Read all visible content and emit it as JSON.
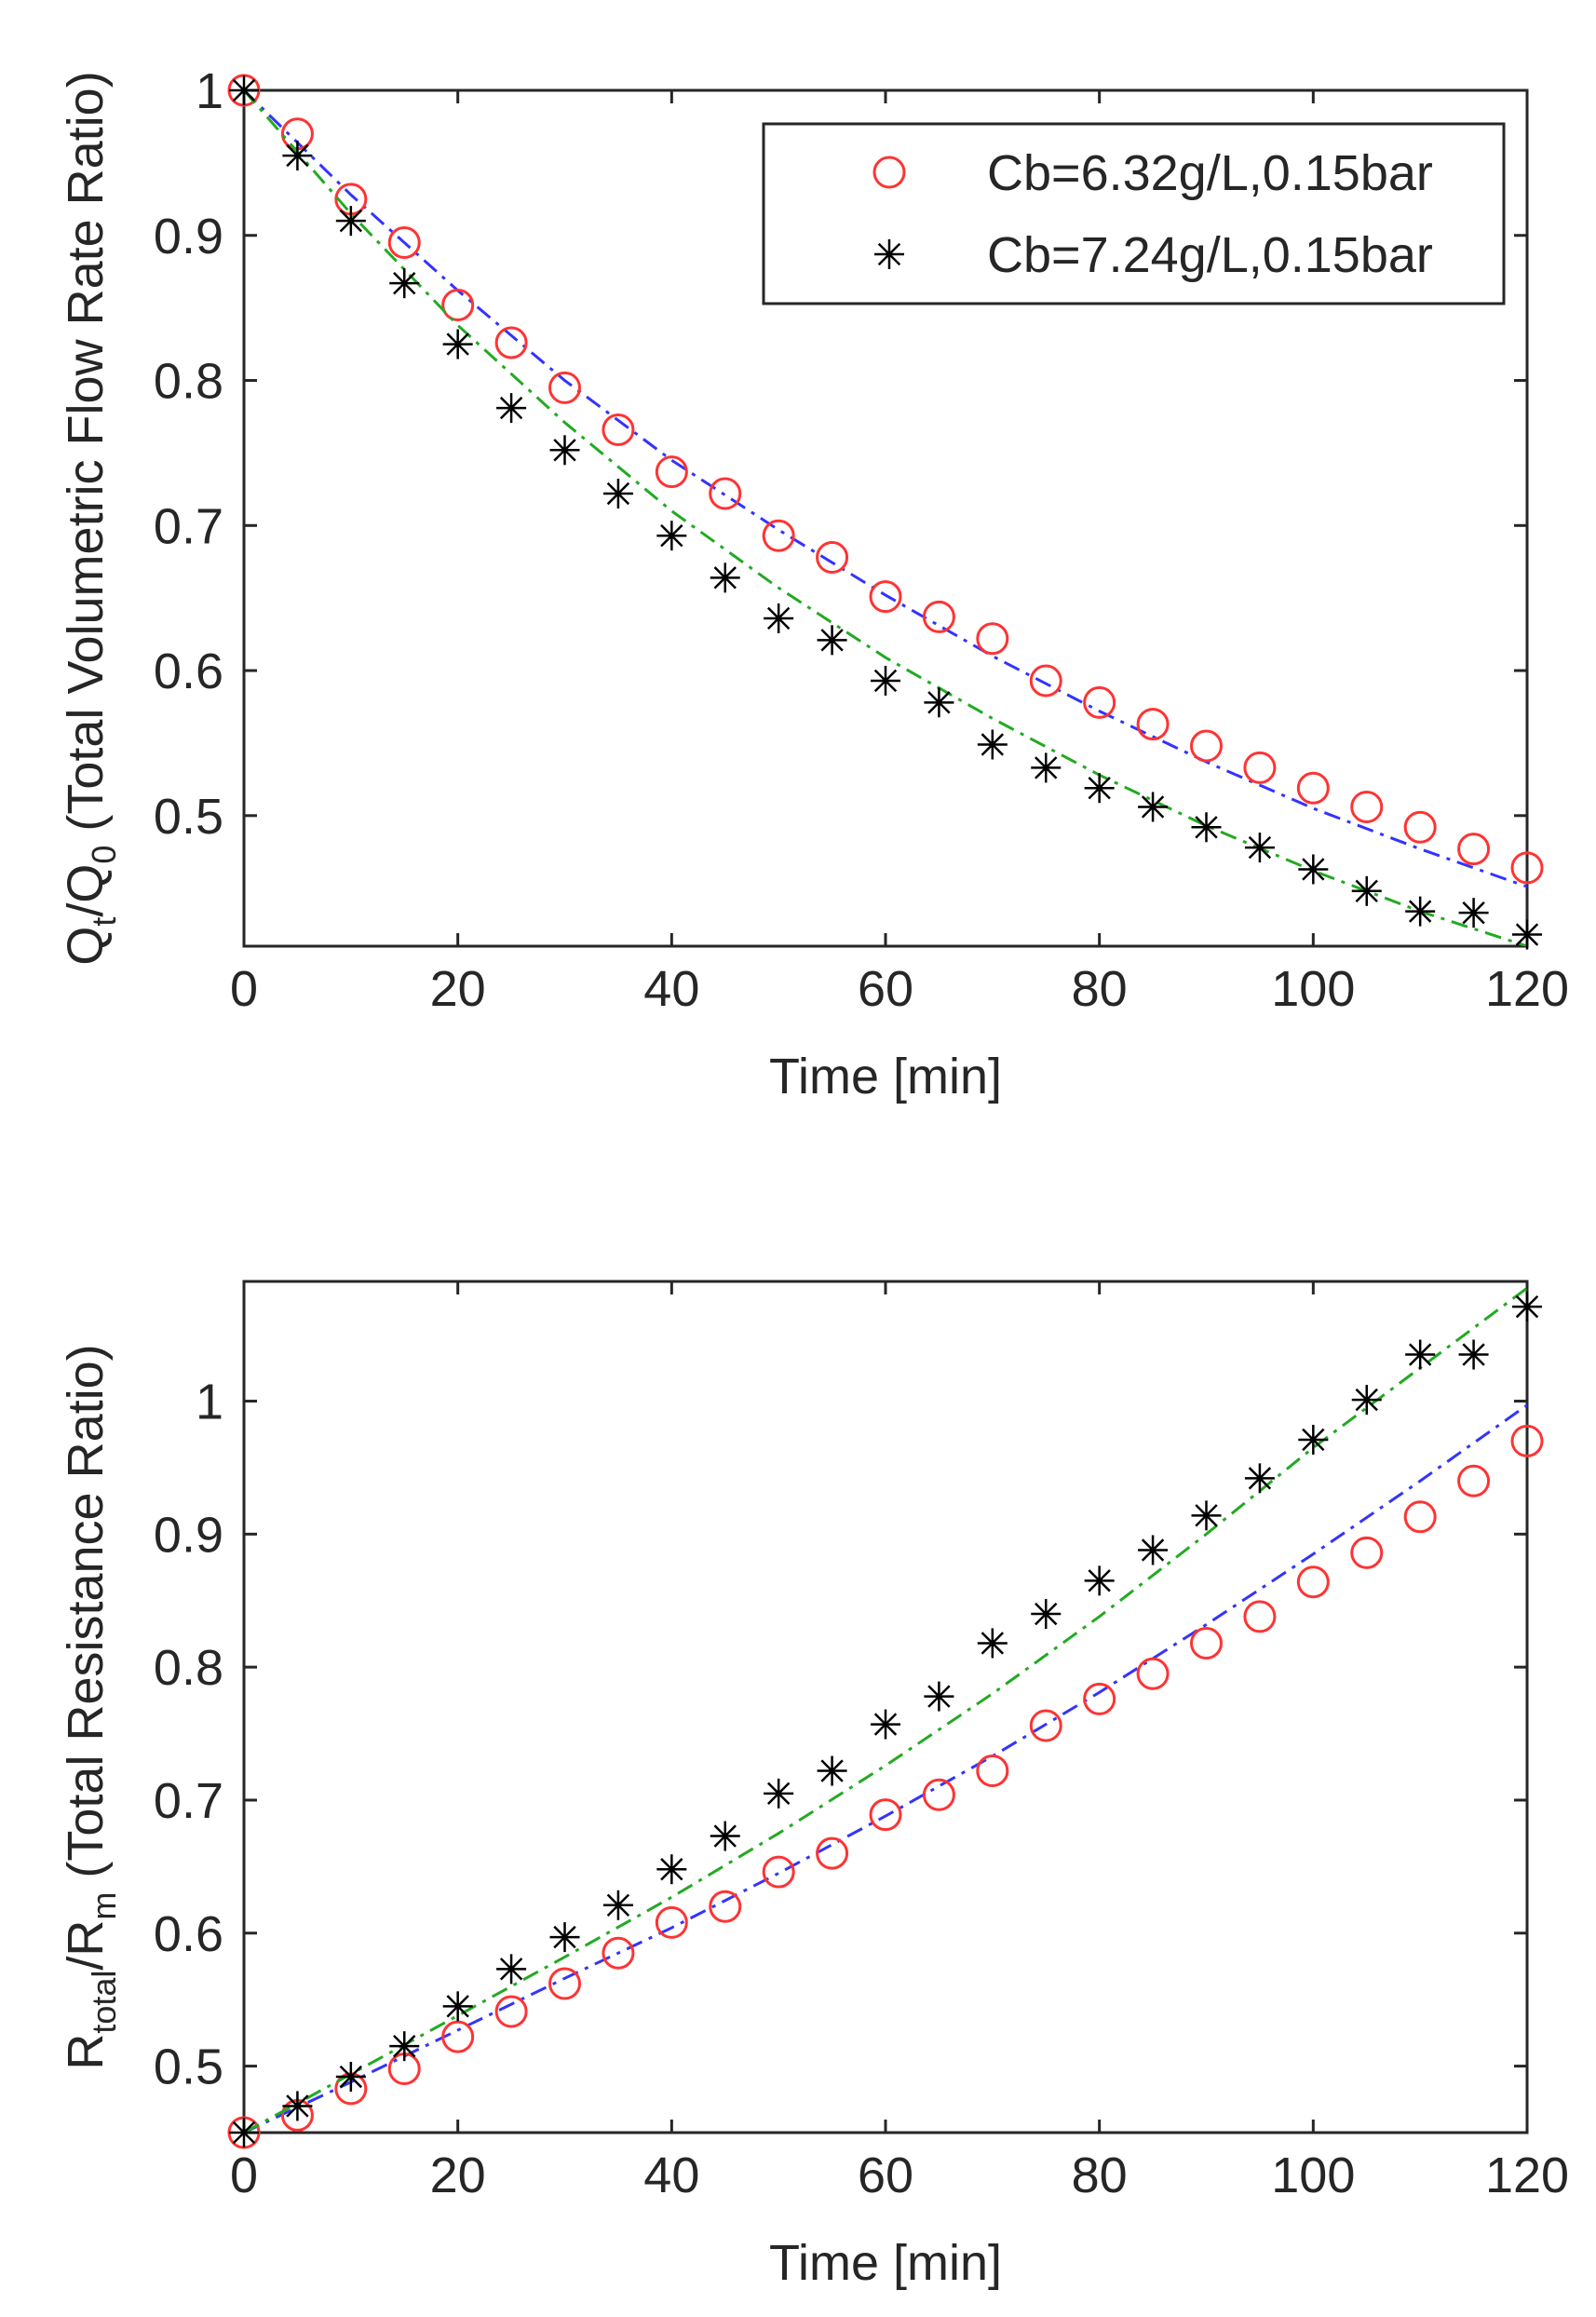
{
  "chart_data": [
    {
      "type": "line",
      "title": "",
      "xlabel": "Time [min]",
      "ylabel": {
        "main": "Q",
        "sub1": "t",
        "mid": "/Q",
        "sub2": "0",
        "rest": " (Total Volumetric Flow Rate Ratio)"
      },
      "xlim": [
        0,
        120
      ],
      "ylim": [
        0.41,
        1.0
      ],
      "xticks": [
        0,
        20,
        40,
        60,
        80,
        100,
        120
      ],
      "yticks": [
        0.5,
        0.6,
        0.7,
        0.8,
        0.9,
        1
      ],
      "grid": false,
      "legend_position": "top-right",
      "series": [
        {
          "name": "Cb=6.32g/L,0.15bar",
          "marker": "circle",
          "marker_color": "#ff3333",
          "x": [
            0,
            5,
            10,
            15,
            20,
            25,
            30,
            35,
            40,
            45,
            50,
            55,
            60,
            65,
            70,
            75,
            80,
            85,
            90,
            95,
            100,
            105,
            110,
            115,
            120
          ],
          "values": [
            1.0,
            0.97,
            0.925,
            0.895,
            0.852,
            0.826,
            0.795,
            0.766,
            0.737,
            0.722,
            0.693,
            0.678,
            0.651,
            0.637,
            0.622,
            0.593,
            0.578,
            0.563,
            0.548,
            0.533,
            0.519,
            0.506,
            0.492,
            0.477,
            0.464
          ],
          "fit": {
            "style": "dash-dot",
            "color": "#3333ff",
            "x": [
              0,
              10,
              20,
              30,
              40,
              50,
              60,
              70,
              80,
              90,
              100,
              110,
              120
            ],
            "values": [
              1.0,
              0.928,
              0.862,
              0.8,
              0.745,
              0.697,
              0.652,
              0.61,
              0.572,
              0.537,
              0.505,
              0.477,
              0.451
            ]
          }
        },
        {
          "name": "Cb=7.24g/L,0.15bar",
          "marker": "star",
          "marker_color": "#000000",
          "x": [
            0,
            5,
            10,
            15,
            20,
            25,
            30,
            35,
            40,
            45,
            50,
            55,
            60,
            65,
            70,
            75,
            80,
            85,
            90,
            95,
            100,
            105,
            110,
            115,
            120
          ],
          "values": [
            1.0,
            0.955,
            0.91,
            0.867,
            0.825,
            0.781,
            0.752,
            0.722,
            0.693,
            0.664,
            0.636,
            0.621,
            0.593,
            0.578,
            0.549,
            0.533,
            0.519,
            0.506,
            0.492,
            0.478,
            0.463,
            0.448,
            0.434,
            0.433,
            0.418
          ],
          "fit": {
            "style": "dash-dot",
            "color": "#22aa22",
            "x": [
              0,
              10,
              20,
              30,
              40,
              50,
              60,
              70,
              80,
              90,
              100,
              110,
              120
            ],
            "values": [
              1.0,
              0.915,
              0.838,
              0.771,
              0.71,
              0.657,
              0.609,
              0.567,
              0.528,
              0.493,
              0.462,
              0.434,
              0.41
            ]
          }
        }
      ]
    },
    {
      "type": "line",
      "title": "",
      "xlabel": "Time [min]",
      "ylabel": {
        "main": "R",
        "sub1": "total",
        "mid": "/R",
        "sub2": "m",
        "rest": " (Total Resistance Ratio)"
      },
      "xlim": [
        0,
        120
      ],
      "ylim": [
        0.45,
        1.09
      ],
      "xticks": [
        0,
        20,
        40,
        60,
        80,
        100,
        120
      ],
      "yticks": [
        0.5,
        0.6,
        0.7,
        0.8,
        0.9,
        1
      ],
      "grid": false,
      "legend_position": "none",
      "series": [
        {
          "name": "Cb=6.32g/L,0.15bar",
          "marker": "circle",
          "marker_color": "#ff3333",
          "x": [
            0,
            5,
            10,
            15,
            20,
            25,
            30,
            35,
            40,
            45,
            50,
            55,
            60,
            65,
            70,
            75,
            80,
            85,
            90,
            95,
            100,
            105,
            110,
            115,
            120
          ],
          "values": [
            0.45,
            0.463,
            0.483,
            0.498,
            0.522,
            0.541,
            0.562,
            0.585,
            0.608,
            0.62,
            0.646,
            0.66,
            0.689,
            0.704,
            0.722,
            0.756,
            0.776,
            0.795,
            0.818,
            0.838,
            0.864,
            0.886,
            0.913,
            0.94,
            0.97
          ],
          "fit": {
            "style": "dash-dot",
            "color": "#3333ff",
            "x": [
              0,
              10,
              20,
              30,
              40,
              50,
              60,
              70,
              80,
              90,
              100,
              110,
              120
            ],
            "values": [
              0.45,
              0.488,
              0.527,
              0.566,
              0.604,
              0.645,
              0.688,
              0.733,
              0.781,
              0.832,
              0.885,
              0.94,
              0.997
            ]
          }
        },
        {
          "name": "Cb=7.24g/L,0.15bar",
          "marker": "star",
          "marker_color": "#000000",
          "x": [
            0,
            5,
            10,
            15,
            20,
            25,
            30,
            35,
            40,
            45,
            50,
            55,
            60,
            65,
            70,
            75,
            80,
            85,
            90,
            95,
            100,
            105,
            110,
            115,
            120
          ],
          "values": [
            0.45,
            0.47,
            0.492,
            0.515,
            0.545,
            0.573,
            0.597,
            0.621,
            0.648,
            0.673,
            0.705,
            0.722,
            0.757,
            0.778,
            0.818,
            0.84,
            0.865,
            0.888,
            0.914,
            0.942,
            0.971,
            1.001,
            1.035,
            1.035,
            1.071
          ],
          "fit": {
            "style": "dash-dot",
            "color": "#22aa22",
            "x": [
              0,
              10,
              20,
              30,
              40,
              50,
              60,
              70,
              80,
              90,
              100,
              110,
              120
            ],
            "values": [
              0.45,
              0.494,
              0.538,
              0.582,
              0.627,
              0.675,
              0.726,
              0.78,
              0.838,
              0.9,
              0.965,
              1.025,
              1.085
            ]
          }
        }
      ]
    }
  ]
}
